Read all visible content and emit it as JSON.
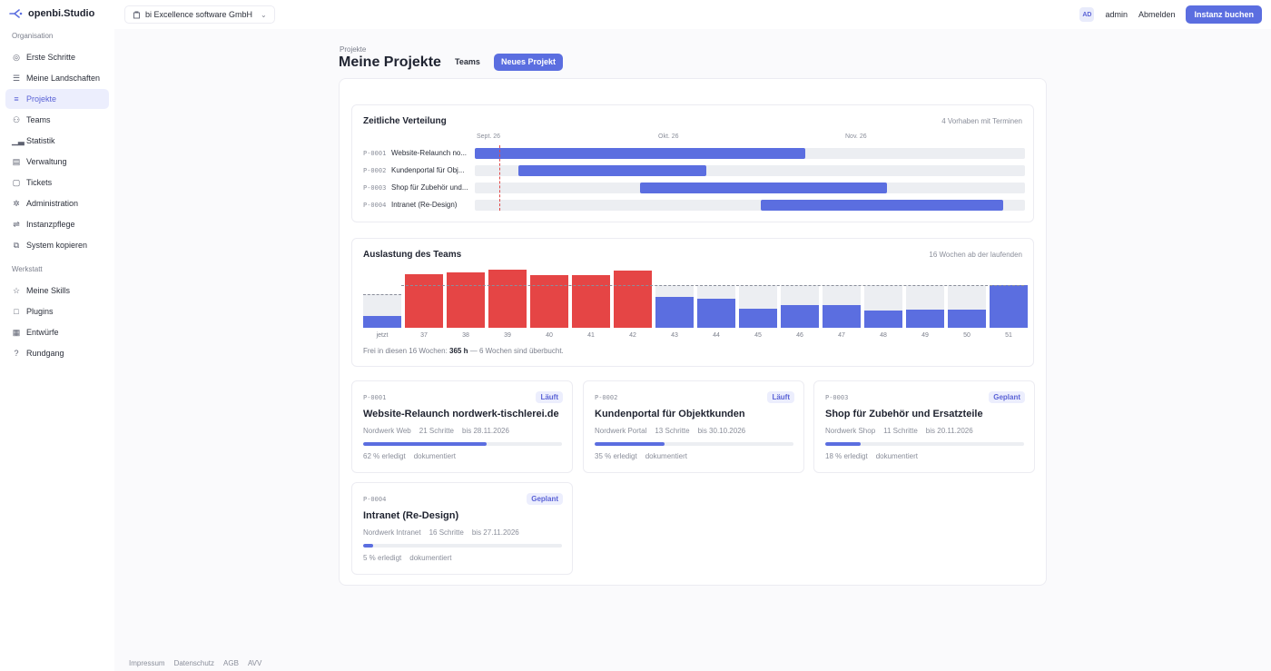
{
  "app": {
    "brand": "openbi.Studio"
  },
  "header": {
    "org_select": "bi Excellence software GmbH",
    "avatar_initials": "AD",
    "user": "admin",
    "logout": "Abmelden",
    "book_button": "Instanz buchen"
  },
  "sidebar": {
    "section_org": "Organisation",
    "org_items": [
      {
        "label": "Erste Schritte",
        "icon": "check-circle-icon"
      },
      {
        "label": "Meine Landschaften",
        "icon": "layers-icon"
      },
      {
        "label": "Projekte",
        "icon": "list-icon"
      },
      {
        "label": "Teams",
        "icon": "user-icon"
      },
      {
        "label": "Statistik",
        "icon": "bar-chart-icon"
      },
      {
        "label": "Verwaltung",
        "icon": "folder-icon"
      },
      {
        "label": "Tickets",
        "icon": "chat-icon"
      },
      {
        "label": "Administration",
        "icon": "gear-icon"
      },
      {
        "label": "Instanzpflege",
        "icon": "sliders-icon"
      },
      {
        "label": "System kopieren",
        "icon": "copy-icon"
      }
    ],
    "section_work": "Werkstatt",
    "work_items": [
      {
        "label": "Meine Skills",
        "icon": "star-icon"
      },
      {
        "label": "Plugins",
        "icon": "plugin-icon"
      },
      {
        "label": "Entwürfe",
        "icon": "draft-icon"
      },
      {
        "label": "Rundgang",
        "icon": "help-icon"
      }
    ],
    "active": "Projekte"
  },
  "page": {
    "breadcrumb": "Projekte",
    "title": "Meine Projekte",
    "tab_teams": "Teams",
    "new_project": "Neues Projekt"
  },
  "timeline": {
    "title": "Zeitliche Verteilung",
    "meta": "4 Vorhaben mit Terminen",
    "axis": [
      "Sept. 26",
      "Okt. 26",
      "Nov. 26"
    ],
    "rows": [
      {
        "id": "P-0001",
        "name": "Website-Relaunch no...",
        "start": 0.0,
        "end": 0.6
      },
      {
        "id": "P-0002",
        "name": "Kundenportal für Obj...",
        "start": 0.08,
        "end": 0.42
      },
      {
        "id": "P-0003",
        "name": "Shop für Zubehör und...",
        "start": 0.3,
        "end": 0.75
      },
      {
        "id": "P-0004",
        "name": "Intranet (Re-Design)",
        "start": 0.52,
        "end": 0.96
      }
    ],
    "today": 0.045
  },
  "load": {
    "title": "Auslastung des Teams",
    "meta": "16 Wochen ab der laufenden",
    "capacity": 0.74,
    "weeks": [
      {
        "label": "jetzt",
        "value": 0.2,
        "over": false,
        "cap": 0.58
      },
      {
        "label": "37",
        "value": 0.92,
        "over": true,
        "cap": 0.74
      },
      {
        "label": "38",
        "value": 0.96,
        "over": true,
        "cap": 0.74
      },
      {
        "label": "39",
        "value": 1.0,
        "over": true,
        "cap": 0.74
      },
      {
        "label": "40",
        "value": 0.91,
        "over": true,
        "cap": 0.74
      },
      {
        "label": "41",
        "value": 0.91,
        "over": true,
        "cap": 0.74
      },
      {
        "label": "42",
        "value": 0.99,
        "over": true,
        "cap": 0.74
      },
      {
        "label": "43",
        "value": 0.53,
        "over": false,
        "cap": 0.74
      },
      {
        "label": "44",
        "value": 0.5,
        "over": false,
        "cap": 0.74
      },
      {
        "label": "45",
        "value": 0.33,
        "over": false,
        "cap": 0.74
      },
      {
        "label": "46",
        "value": 0.39,
        "over": false,
        "cap": 0.74
      },
      {
        "label": "47",
        "value": 0.39,
        "over": false,
        "cap": 0.74
      },
      {
        "label": "48",
        "value": 0.3,
        "over": false,
        "cap": 0.74
      },
      {
        "label": "49",
        "value": 0.31,
        "over": false,
        "cap": 0.74
      },
      {
        "label": "50",
        "value": 0.32,
        "over": false,
        "cap": 0.74
      },
      {
        "label": "51",
        "value": 0.73,
        "over": false,
        "cap": 0.74
      }
    ],
    "footer_prefix": "Frei in diesen 16 Wochen:",
    "footer_value": "365 h",
    "footer_suffix": "— 6 Wochen sind überbucht."
  },
  "projects": [
    {
      "id": "P-0001",
      "status": "Läuft",
      "title": "Website-Relaunch nordwerk-tischlerei.de",
      "landscape": "Nordwerk Web",
      "steps": "21 Schritte",
      "due": "bis 28.11.2026",
      "progress": 0.62,
      "done": "62 % erledigt",
      "doc": "dokumentiert"
    },
    {
      "id": "P-0002",
      "status": "Läuft",
      "title": "Kundenportal für Objektkunden",
      "landscape": "Nordwerk Portal",
      "steps": "13 Schritte",
      "due": "bis 30.10.2026",
      "progress": 0.35,
      "done": "35 % erledigt",
      "doc": "dokumentiert"
    },
    {
      "id": "P-0003",
      "status": "Geplant",
      "title": "Shop für Zubehör und Ersatzteile",
      "landscape": "Nordwerk Shop",
      "steps": "11 Schritte",
      "due": "bis 20.11.2026",
      "progress": 0.18,
      "done": "18 % erledigt",
      "doc": "dokumentiert"
    },
    {
      "id": "P-0004",
      "status": "Geplant",
      "title": "Intranet (Re-Design)",
      "landscape": "Nordwerk Intranet",
      "steps": "16 Schritte",
      "due": "bis 27.11.2026",
      "progress": 0.05,
      "done": "5 % erledigt",
      "doc": "dokumentiert"
    }
  ],
  "footer": [
    "Impressum",
    "Datenschutz",
    "AGB",
    "AVV"
  ],
  "colors": {
    "accent": "#5b6ee0",
    "over": "#e54545",
    "track": "#eceef2"
  }
}
